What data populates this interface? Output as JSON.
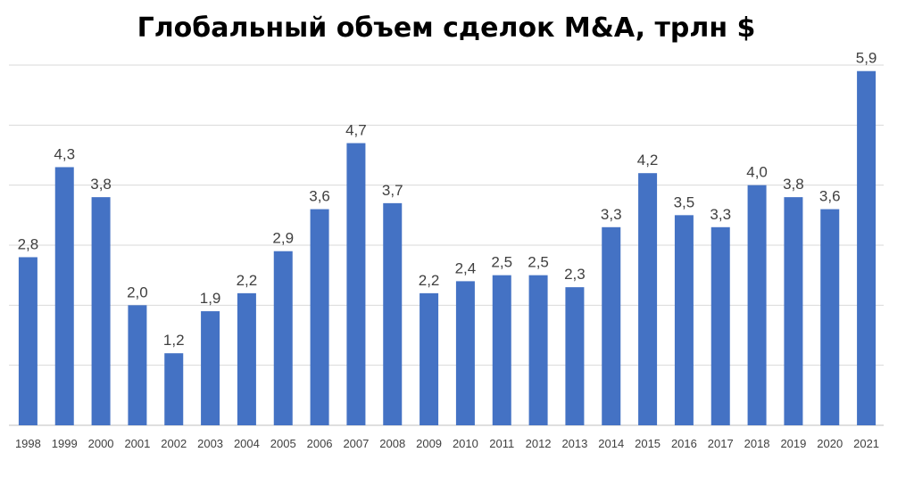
{
  "chart_data": {
    "type": "bar",
    "title": "Глобальный объем сделок M&A, трлн $",
    "xlabel": "",
    "ylabel": "",
    "categories": [
      "1998",
      "1999",
      "2000",
      "2001",
      "2002",
      "2003",
      "2004",
      "2005",
      "2006",
      "2007",
      "2008",
      "2009",
      "2010",
      "2011",
      "2012",
      "2013",
      "2014",
      "2015",
      "2016",
      "2017",
      "2018",
      "2019",
      "2020",
      "2021"
    ],
    "values": [
      2.8,
      4.3,
      3.8,
      2.0,
      1.2,
      1.9,
      2.2,
      2.9,
      3.6,
      4.7,
      3.7,
      2.2,
      2.4,
      2.5,
      2.5,
      2.3,
      3.3,
      4.2,
      3.5,
      3.3,
      4.0,
      3.8,
      3.6,
      5.9
    ],
    "value_labels": [
      "2,8",
      "4,3",
      "3,8",
      "2,0",
      "1,2",
      "1,9",
      "2,2",
      "2,9",
      "3,6",
      "4,7",
      "3,7",
      "2,2",
      "2,4",
      "2,5",
      "2,5",
      "2,3",
      "3,3",
      "4,2",
      "3,5",
      "3,3",
      "4,0",
      "3,8",
      "3,6",
      "5,9"
    ],
    "ylim": [
      0,
      6
    ],
    "grid": true,
    "legend": "none",
    "bar_color": "#4472C4",
    "grid_color": "#D9D9D9"
  }
}
